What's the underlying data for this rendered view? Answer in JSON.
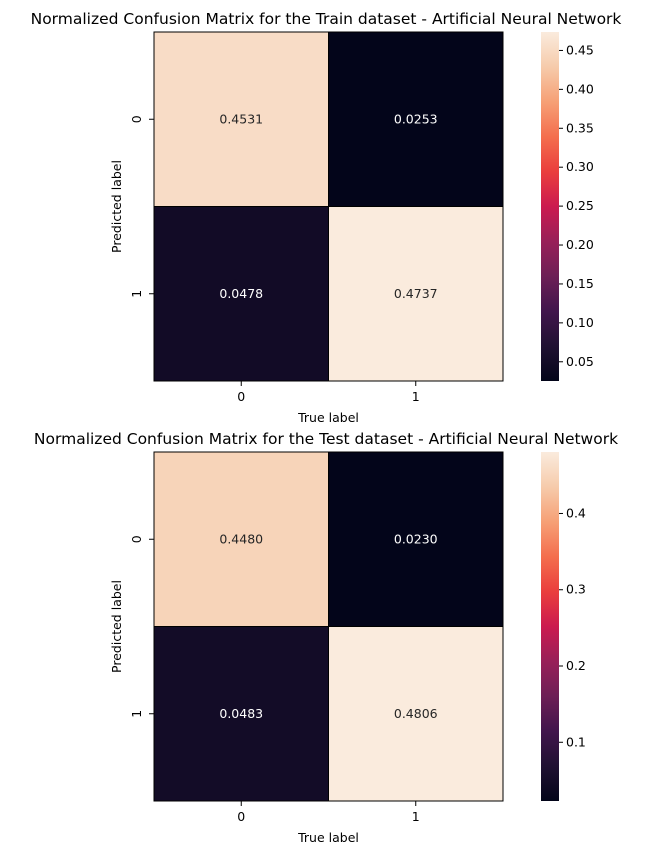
{
  "chart_data": [
    {
      "type": "heatmap",
      "title": "Normalized Confusion Matrix for the Train dataset - Artificial Neural Network",
      "xlabel": "True label",
      "ylabel": "Predicted label",
      "x_ticks": [
        "0",
        "1"
      ],
      "y_ticks": [
        "0",
        "1"
      ],
      "matrix": [
        [
          0.4531,
          0.0253
        ],
        [
          0.0478,
          0.4737
        ]
      ],
      "cell_labels": [
        [
          "0.4531",
          "0.0253"
        ],
        [
          "0.0478",
          "0.4737"
        ]
      ],
      "colorbar": {
        "range": [
          0.0253,
          0.4737
        ],
        "ticks": [
          "0.05",
          "0.10",
          "0.15",
          "0.20",
          "0.25",
          "0.30",
          "0.35",
          "0.40",
          "0.45"
        ]
      }
    },
    {
      "type": "heatmap",
      "title": "Normalized Confusion Matrix for the Test dataset - Artificial Neural Network",
      "xlabel": "True label",
      "ylabel": "Predicted label",
      "x_ticks": [
        "0",
        "1"
      ],
      "y_ticks": [
        "0",
        "1"
      ],
      "matrix": [
        [
          0.448,
          0.023
        ],
        [
          0.0483,
          0.4806
        ]
      ],
      "cell_labels": [
        [
          "0.4480",
          "0.0230"
        ],
        [
          "0.0483",
          "0.4806"
        ]
      ],
      "colorbar": {
        "range": [
          0.023,
          0.4806
        ],
        "ticks": [
          "0.1",
          "0.2",
          "0.3",
          "0.4"
        ]
      }
    }
  ]
}
